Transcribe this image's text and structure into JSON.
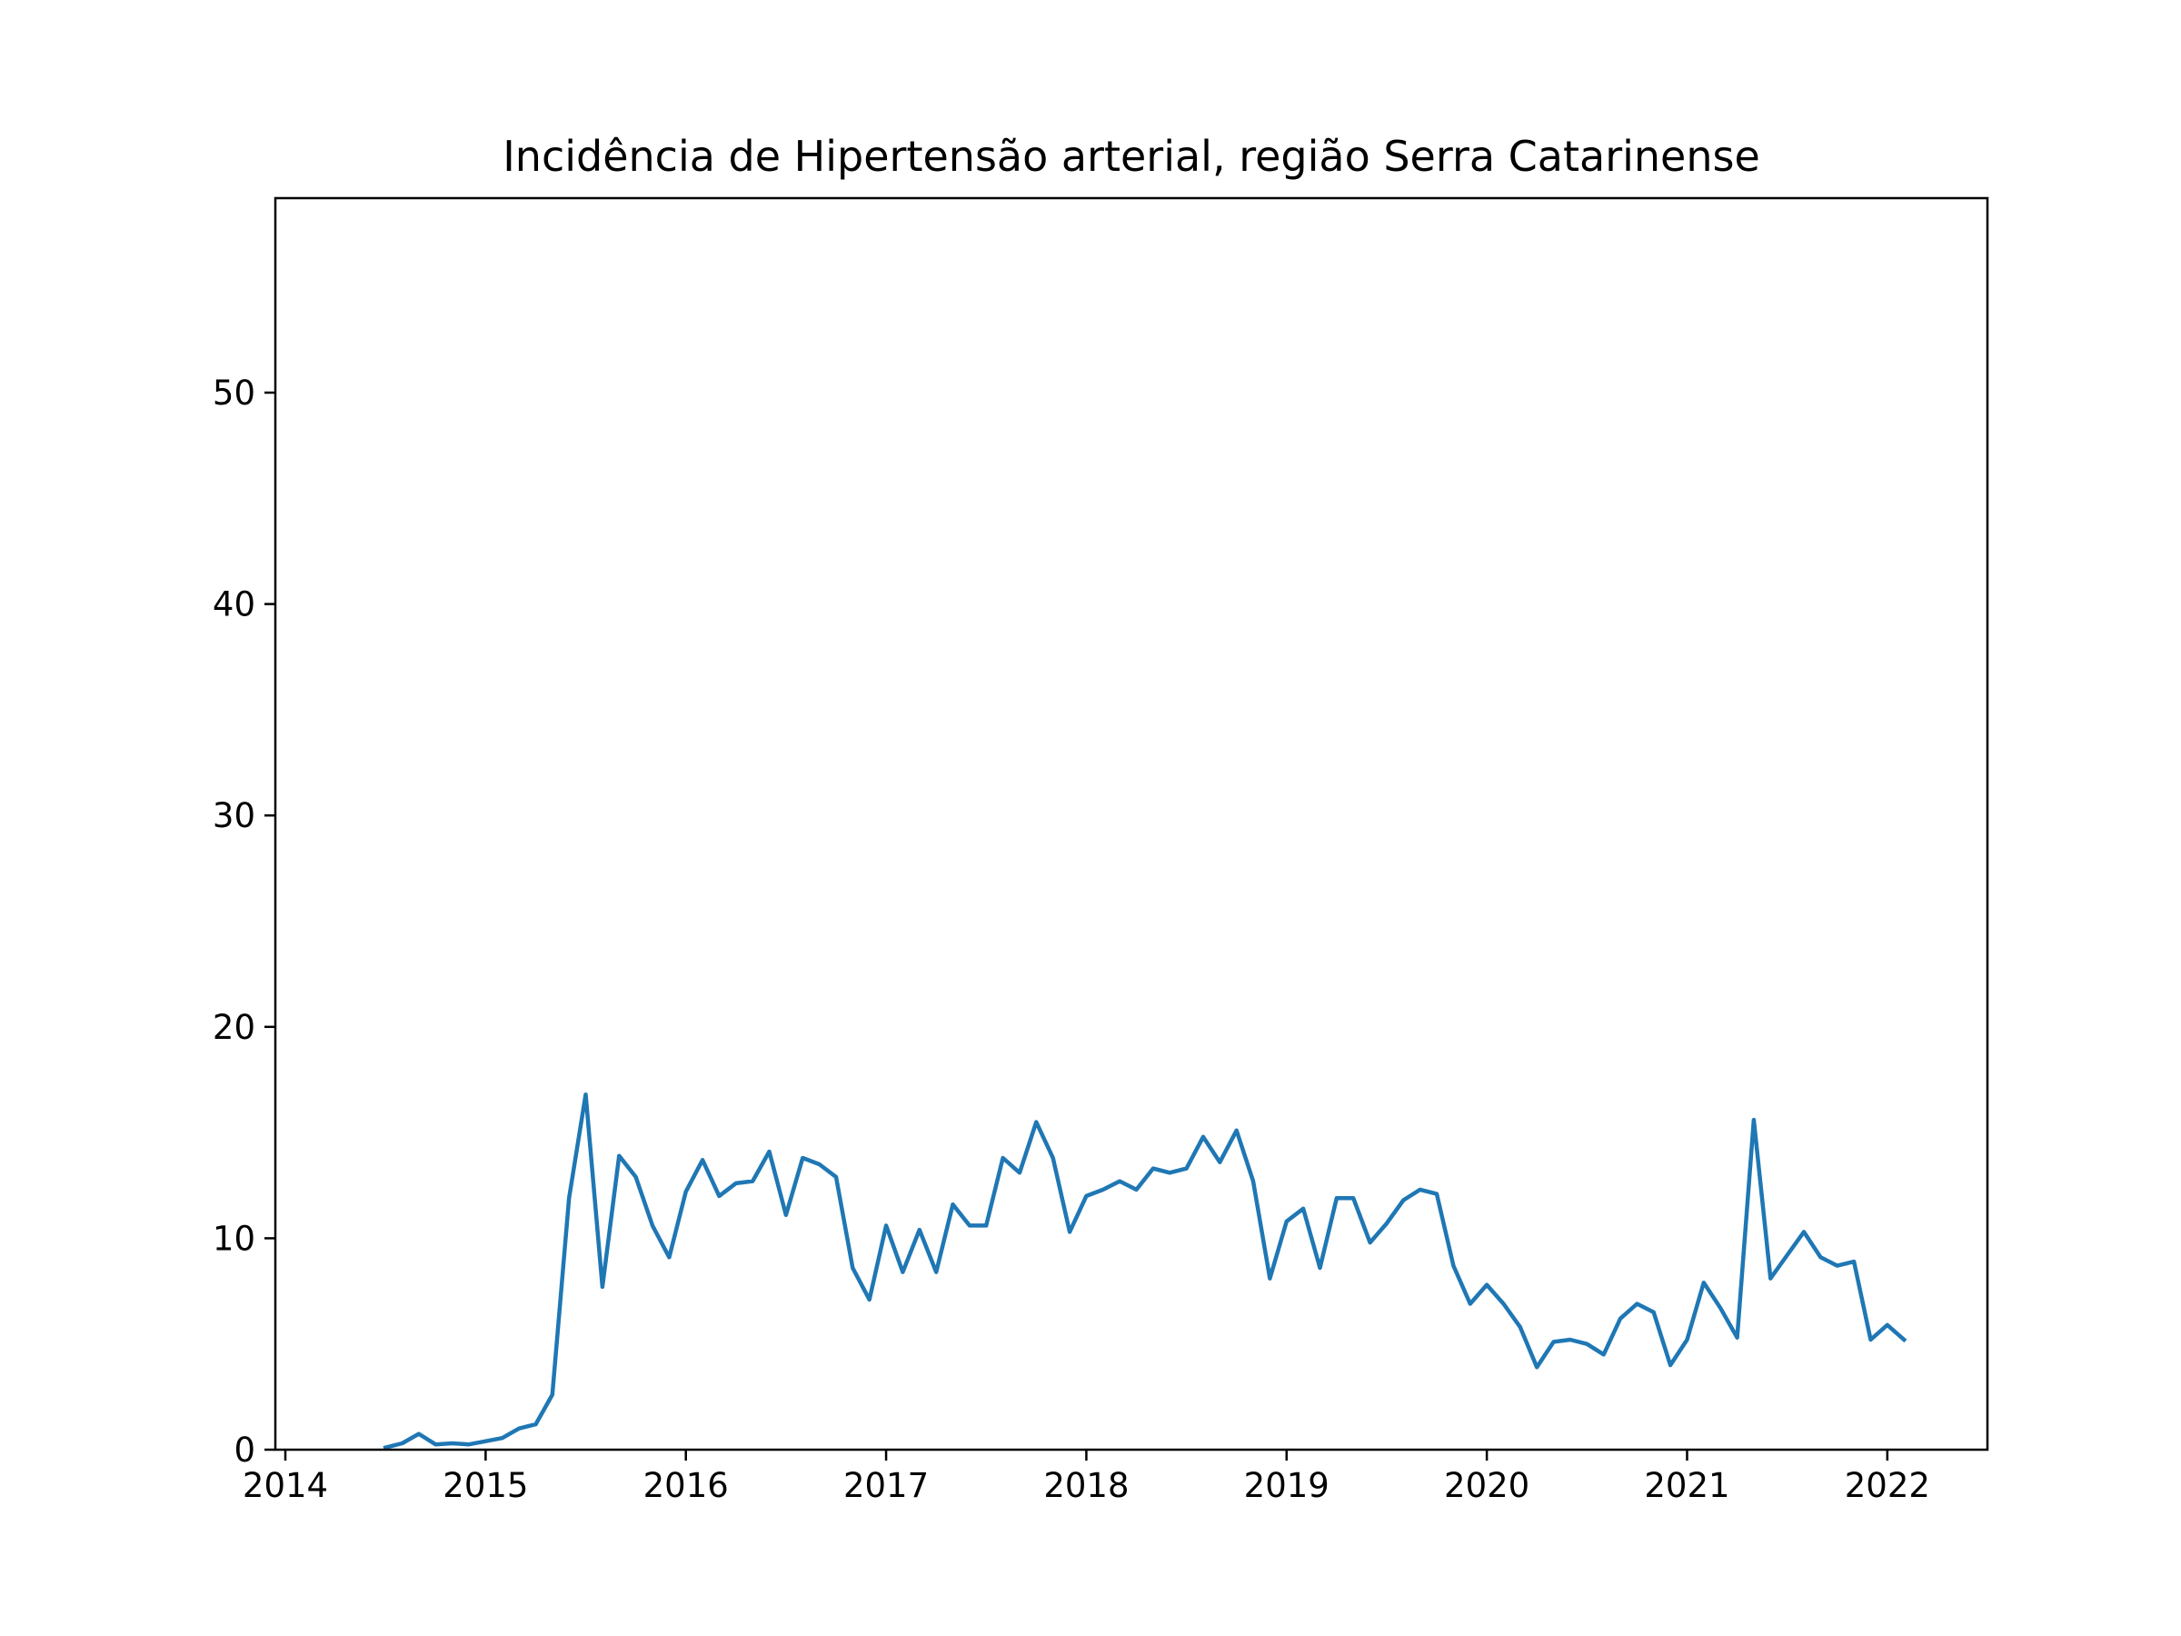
{
  "chart_data": {
    "type": "line",
    "title": "Incidência de Hipertensão arterial, região Serra Catarinense",
    "xlabel": "",
    "ylabel": "",
    "xlim": [
      2013.95,
      2022.5
    ],
    "ylim": [
      0,
      59.2
    ],
    "x_ticks": [
      2014,
      2015,
      2016,
      2017,
      2018,
      2019,
      2020,
      2021,
      2022
    ],
    "x_tick_labels": [
      "2014",
      "2015",
      "2016",
      "2017",
      "2018",
      "2019",
      "2020",
      "2021",
      "2022"
    ],
    "y_ticks": [
      0,
      10,
      20,
      30,
      40,
      50
    ],
    "y_tick_labels": [
      "0",
      "10",
      "20",
      "30",
      "40",
      "50"
    ],
    "grid": false,
    "legend": "none",
    "series": [
      {
        "color": "#1f77b4",
        "x": [
          "2014-07",
          "2014-08",
          "2014-09",
          "2014-10",
          "2014-11",
          "2014-12",
          "2015-01",
          "2015-02",
          "2015-03",
          "2015-04",
          "2015-05",
          "2015-06",
          "2015-07",
          "2015-08",
          "2015-09",
          "2015-10",
          "2015-11",
          "2015-12",
          "2016-01",
          "2016-02",
          "2016-03",
          "2016-04",
          "2016-05",
          "2016-06",
          "2016-07",
          "2016-08",
          "2016-09",
          "2016-10",
          "2016-11",
          "2016-12",
          "2017-01",
          "2017-02",
          "2017-03",
          "2017-04",
          "2017-05",
          "2017-06",
          "2017-07",
          "2017-08",
          "2017-09",
          "2017-10",
          "2017-11",
          "2017-12",
          "2018-01",
          "2018-02",
          "2018-03",
          "2018-04",
          "2018-05",
          "2018-06",
          "2018-07",
          "2018-08",
          "2018-09",
          "2018-10",
          "2018-11",
          "2018-12",
          "2019-01",
          "2019-02",
          "2019-03",
          "2019-04",
          "2019-05",
          "2019-06",
          "2019-07",
          "2019-08",
          "2019-09",
          "2019-10",
          "2019-11",
          "2019-12",
          "2020-01",
          "2020-02",
          "2020-03",
          "2020-04",
          "2020-05",
          "2020-06",
          "2020-07",
          "2020-08",
          "2020-09",
          "2020-10",
          "2020-11",
          "2020-12",
          "2021-01",
          "2021-02",
          "2021-03",
          "2021-04",
          "2021-05",
          "2021-06",
          "2021-07",
          "2021-08",
          "2021-09",
          "2021-10",
          "2021-11",
          "2021-12",
          "2022-01",
          "2022-02"
        ],
        "values": [
          0.1,
          0.3,
          0.75,
          0.25,
          0.3,
          0.25,
          0.4,
          0.55,
          1.0,
          1.2,
          2.6,
          11.9,
          16.8,
          7.7,
          13.9,
          12.9,
          10.6,
          9.1,
          12.2,
          13.7,
          12.0,
          12.6,
          12.7,
          14.1,
          11.1,
          13.8,
          13.5,
          12.9,
          8.6,
          7.1,
          10.6,
          8.4,
          10.4,
          8.4,
          11.6,
          10.6,
          10.6,
          13.8,
          13.1,
          15.5,
          13.8,
          10.3,
          12.0,
          12.3,
          12.7,
          12.3,
          13.3,
          13.1,
          13.3,
          14.8,
          13.6,
          15.1,
          12.7,
          8.1,
          10.8,
          11.4,
          8.6,
          11.9,
          11.9,
          9.8,
          10.7,
          11.8,
          12.3,
          12.1,
          8.7,
          6.9,
          7.8,
          6.9,
          5.8,
          3.9,
          5.1,
          5.2,
          5.0,
          4.5,
          6.2,
          6.9,
          6.5,
          4.0,
          5.2,
          7.9,
          6.7,
          5.3,
          15.6,
          8.1,
          9.2,
          10.3,
          9.1,
          8.7,
          8.9,
          5.2,
          5.9,
          5.2
        ]
      }
    ]
  }
}
